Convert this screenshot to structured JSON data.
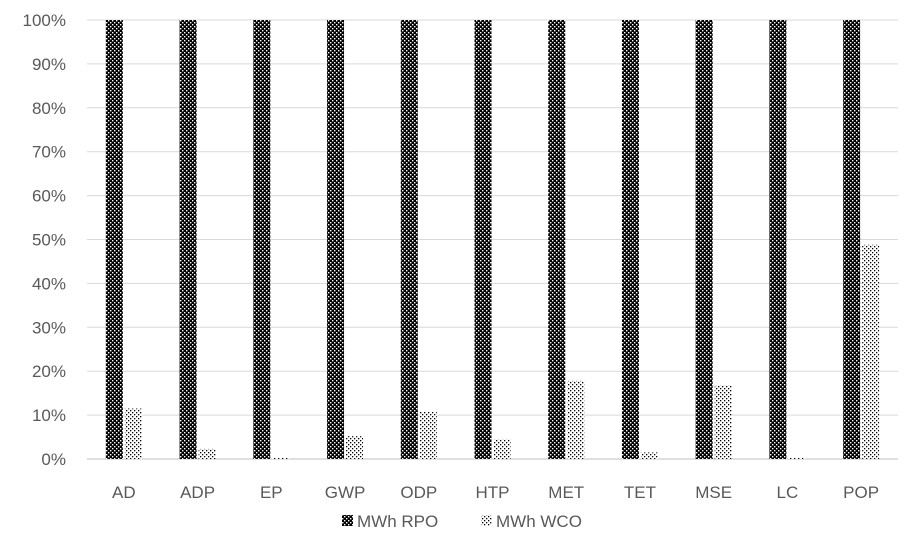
{
  "chart_data": {
    "type": "bar",
    "title": "",
    "xlabel": "",
    "ylabel": "",
    "categories": [
      "AD",
      "ADP",
      "EP",
      "GWP",
      "ODP",
      "HTP",
      "MET",
      "TET",
      "MSE",
      "LC",
      "POP"
    ],
    "series": [
      {
        "name": "MWh RPO",
        "values": [
          100,
          100,
          100,
          100,
          100,
          100,
          100,
          100,
          100,
          100,
          100
        ],
        "pattern": "dense-dots"
      },
      {
        "name": "MWh WCO",
        "values": [
          11.5,
          2.3,
          0.3,
          5.2,
          10.8,
          4.5,
          17.8,
          1.5,
          16.8,
          0.3,
          48.8
        ],
        "pattern": "sparse-dots"
      }
    ],
    "ylim": [
      0,
      100
    ],
    "yticks": [
      "0%",
      "10%",
      "20%",
      "30%",
      "40%",
      "50%",
      "60%",
      "70%",
      "80%",
      "90%",
      "100%"
    ],
    "grid": true,
    "legend_position": "bottom",
    "colors": {
      "dense": "#000000",
      "sparse": "#000000",
      "grid": "#d9d9d9",
      "text": "#595959"
    }
  }
}
